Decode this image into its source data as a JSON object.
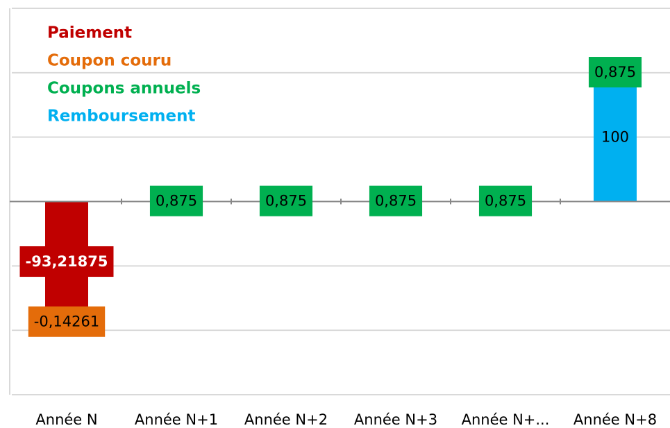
{
  "chart_data": {
    "type": "bar",
    "stacked": true,
    "categories": [
      "Année N",
      "Année N+1",
      "Année N+2",
      "Année N+3",
      "Année N+...",
      "Année N+8"
    ],
    "series": [
      {
        "name": "Paiement",
        "color": "#c00000",
        "values": [
          -93.21875,
          null,
          null,
          null,
          null,
          null
        ],
        "value_labels": [
          "-93,21875",
          null,
          null,
          null,
          null,
          null
        ]
      },
      {
        "name": "Coupon couru",
        "color": "#e46c0a",
        "values": [
          -0.14261,
          null,
          null,
          null,
          null,
          null
        ],
        "value_labels": [
          "-0,14261",
          null,
          null,
          null,
          null,
          null
        ]
      },
      {
        "name": "Coupons annuels",
        "color": "#00b050",
        "values": [
          null,
          0.875,
          0.875,
          0.875,
          0.875,
          0.875
        ],
        "value_labels": [
          null,
          "0,875",
          "0,875",
          "0,875",
          "0,875",
          "0,875"
        ]
      },
      {
        "name": "Remboursement",
        "color": "#00b0f0",
        "values": [
          null,
          null,
          null,
          null,
          null,
          100
        ]
      }
    ],
    "ylim": [
      -150,
      150
    ],
    "yticks": [
      -150,
      -100,
      -50,
      0,
      50,
      100,
      150
    ],
    "grid": true
  }
}
